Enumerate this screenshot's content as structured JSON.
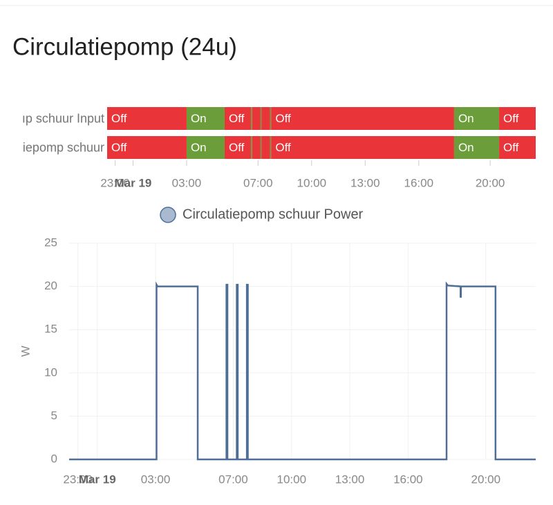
{
  "card_title": "Circulatiepomp (24u)",
  "chart_data": [
    {
      "type": "timeline",
      "state_colors": {
        "Off": "#e93539",
        "On": "#6b9e3a"
      },
      "xlim": [
        -1.45,
        22.55
      ],
      "xticks": [
        {
          "value": -1,
          "label": "23:00"
        },
        {
          "value": 0,
          "label": "Mar 19"
        },
        {
          "value": 3,
          "label": "03:00"
        },
        {
          "value": 7,
          "label": "07:00"
        },
        {
          "value": 10,
          "label": "10:00"
        },
        {
          "value": 13,
          "label": "13:00"
        },
        {
          "value": 16,
          "label": "16:00"
        },
        {
          "value": 20,
          "label": "20:00"
        }
      ],
      "rows": [
        {
          "label": "ıp schuur Input",
          "segments": [
            {
              "start": -1.45,
              "end": 3.0,
              "state": "Off"
            },
            {
              "start": 3.0,
              "end": 5.13,
              "state": "On"
            },
            {
              "start": 5.13,
              "end": 6.6,
              "state": "Off"
            },
            {
              "start": 6.6,
              "end": 6.67,
              "state": "On"
            },
            {
              "start": 6.67,
              "end": 7.14,
              "state": "Off"
            },
            {
              "start": 7.14,
              "end": 7.2,
              "state": "On"
            },
            {
              "start": 7.2,
              "end": 7.68,
              "state": "Off"
            },
            {
              "start": 7.68,
              "end": 7.74,
              "state": "On"
            },
            {
              "start": 7.74,
              "end": 17.98,
              "state": "Off"
            },
            {
              "start": 17.98,
              "end": 20.5,
              "state": "On"
            },
            {
              "start": 20.5,
              "end": 22.55,
              "state": "Off"
            }
          ]
        },
        {
          "label": "iepomp schuur",
          "segments": [
            {
              "start": -1.45,
              "end": 3.0,
              "state": "Off"
            },
            {
              "start": 3.0,
              "end": 5.13,
              "state": "On"
            },
            {
              "start": 5.13,
              "end": 6.6,
              "state": "Off"
            },
            {
              "start": 6.6,
              "end": 6.67,
              "state": "On"
            },
            {
              "start": 6.67,
              "end": 7.14,
              "state": "Off"
            },
            {
              "start": 7.14,
              "end": 7.2,
              "state": "On"
            },
            {
              "start": 7.2,
              "end": 7.68,
              "state": "Off"
            },
            {
              "start": 7.68,
              "end": 7.74,
              "state": "On"
            },
            {
              "start": 7.74,
              "end": 17.98,
              "state": "Off"
            },
            {
              "start": 17.98,
              "end": 20.5,
              "state": "On"
            },
            {
              "start": 20.5,
              "end": 22.55,
              "state": "Off"
            }
          ]
        }
      ]
    },
    {
      "type": "line",
      "y_label": "W",
      "xlim": [
        -1.45,
        22.57
      ],
      "xticks": [
        {
          "value": -1,
          "label": "23:00"
        },
        {
          "value": 0,
          "label": "Mar 19"
        },
        {
          "value": 3,
          "label": "03:00"
        },
        {
          "value": 7,
          "label": "07:00"
        },
        {
          "value": 10,
          "label": "10:00"
        },
        {
          "value": 13,
          "label": "13:00"
        },
        {
          "value": 16,
          "label": "16:00"
        },
        {
          "value": 20,
          "label": "20:00"
        }
      ],
      "ylim": [
        0,
        25
      ],
      "yticks": [
        0,
        5,
        10,
        15,
        20,
        25
      ],
      "grid": true,
      "x": [
        -1.45,
        3.05,
        3.05,
        3.1,
        4,
        5.17,
        5.17,
        6.65,
        6.65,
        6.7,
        6.7,
        7.18,
        7.18,
        7.23,
        7.23,
        7.7,
        7.7,
        7.75,
        7.75,
        17.98,
        17.98,
        18.05,
        18.7,
        18.7,
        18.72,
        18.72,
        20.5,
        20.5,
        22.57
      ],
      "series": [
        {
          "name": "Circulatiepomp schuur Power",
          "color": "#4e6e96",
          "legend_fill": "#a9b9cf",
          "values": [
            0,
            0,
            20.2,
            20,
            20,
            20,
            0,
            0,
            20.2,
            20.2,
            0,
            0,
            20.2,
            20.2,
            0,
            0,
            20.2,
            20.2,
            0,
            0,
            20.3,
            20.1,
            20,
            18.8,
            18.8,
            20,
            20,
            0,
            0
          ]
        }
      ]
    }
  ]
}
